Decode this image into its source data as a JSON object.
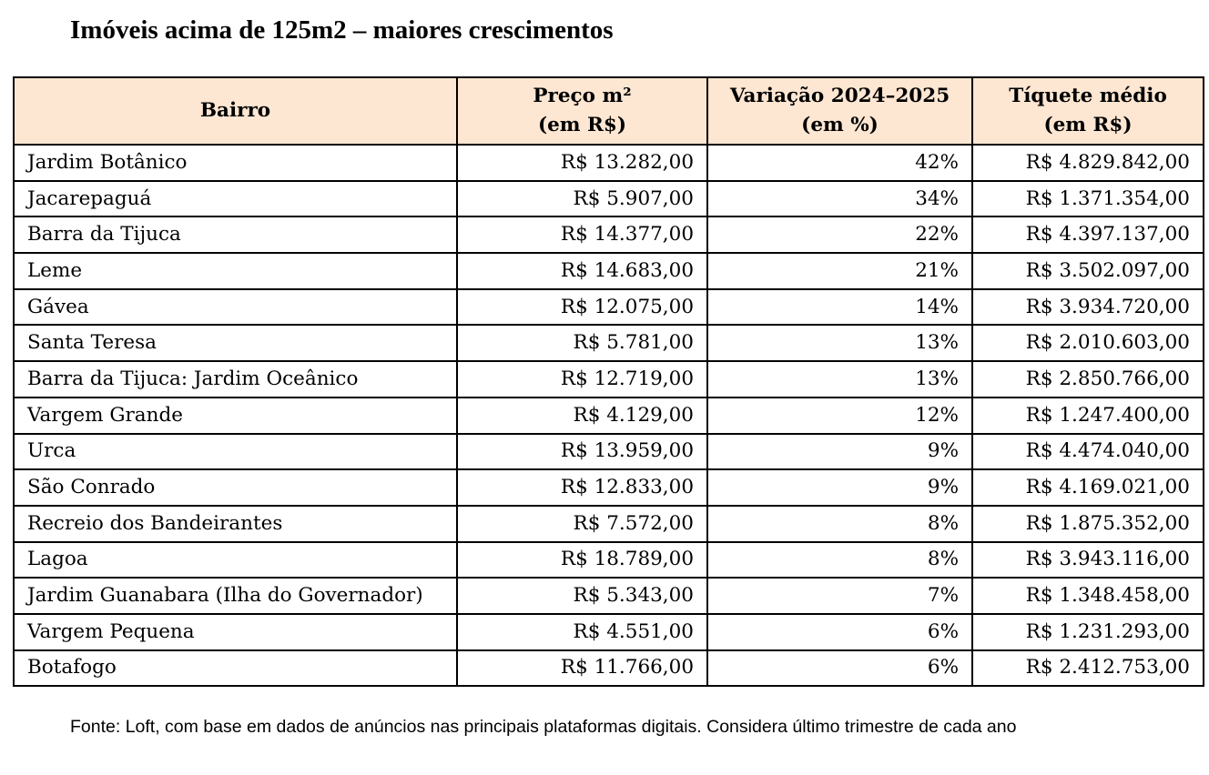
{
  "title": "Imóveis acima de 125m2 – maiores crescimentos",
  "table": {
    "headers": {
      "bairro": "Bairro",
      "preco_line1": "Preço m²",
      "preco_line2": "(em R$)",
      "variacao_line1": "Variação 2024–2025",
      "variacao_line2": "(em %)",
      "tiquete_line1": "Tíquete médio",
      "tiquete_line2": "(em R$)"
    },
    "rows": [
      {
        "bairro": "Jardim Botânico",
        "preco": "R$ 13.282,00",
        "variacao": "42%",
        "tiquete": "R$ 4.829.842,00"
      },
      {
        "bairro": "Jacarepaguá",
        "preco": "R$ 5.907,00",
        "variacao": "34%",
        "tiquete": "R$ 1.371.354,00"
      },
      {
        "bairro": "Barra da Tijuca",
        "preco": "R$ 14.377,00",
        "variacao": "22%",
        "tiquete": "R$ 4.397.137,00"
      },
      {
        "bairro": "Leme",
        "preco": "R$ 14.683,00",
        "variacao": "21%",
        "tiquete": "R$ 3.502.097,00"
      },
      {
        "bairro": "Gávea",
        "preco": "R$ 12.075,00",
        "variacao": "14%",
        "tiquete": "R$ 3.934.720,00"
      },
      {
        "bairro": "Santa Teresa",
        "preco": "R$ 5.781,00",
        "variacao": "13%",
        "tiquete": "R$ 2.010.603,00"
      },
      {
        "bairro": "Barra da Tijuca: Jardim Oceânico",
        "preco": "R$ 12.719,00",
        "variacao": "13%",
        "tiquete": "R$ 2.850.766,00"
      },
      {
        "bairro": "Vargem Grande",
        "preco": "R$ 4.129,00",
        "variacao": "12%",
        "tiquete": "R$ 1.247.400,00"
      },
      {
        "bairro": "Urca",
        "preco": "R$ 13.959,00",
        "variacao": "9%",
        "tiquete": "R$ 4.474.040,00"
      },
      {
        "bairro": "São Conrado",
        "preco": "R$ 12.833,00",
        "variacao": "9%",
        "tiquete": "R$ 4.169.021,00"
      },
      {
        "bairro": "Recreio dos Bandeirantes",
        "preco": "R$ 7.572,00",
        "variacao": "8%",
        "tiquete": "R$ 1.875.352,00"
      },
      {
        "bairro": "Lagoa",
        "preco": "R$ 18.789,00",
        "variacao": "8%",
        "tiquete": "R$ 3.943.116,00"
      },
      {
        "bairro": "Jardim Guanabara (Ilha do Governador)",
        "preco": "R$ 5.343,00",
        "variacao": "7%",
        "tiquete": "R$ 1.348.458,00"
      },
      {
        "bairro": "Vargem Pequena",
        "preco": "R$ 4.551,00",
        "variacao": "6%",
        "tiquete": "R$ 1.231.293,00"
      },
      {
        "bairro": "Botafogo",
        "preco": "R$ 11.766,00",
        "variacao": "6%",
        "tiquete": "R$ 2.412.753,00"
      }
    ]
  },
  "source": "Fonte: Loft, com base em dados de anúncios nas principais plataformas digitais. Considera último trimestre de cada ano",
  "colors": {
    "header_background": "#fde6d2",
    "border": "#000000",
    "text": "#000000"
  }
}
